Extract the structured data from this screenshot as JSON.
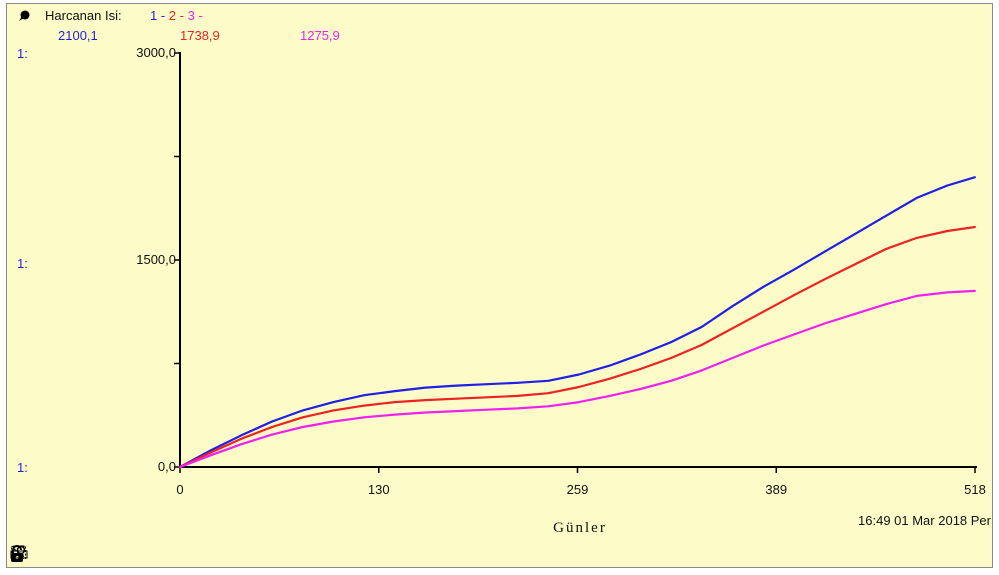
{
  "chart_data": {
    "type": "line",
    "title": "Harcanan Isı",
    "x_tick_labels": [
      "0",
      "130",
      "259",
      "389",
      "518"
    ],
    "y_tick_labels": [
      "0,0",
      "1500,0",
      "3000,0"
    ],
    "xlim": [
      0,
      518
    ],
    "ylim": [
      0,
      3000
    ],
    "xlabel": "Günler",
    "ylabel": "",
    "grid": false,
    "series": [
      {
        "name": "1",
        "color": "#1f1fe6",
        "final_value_label": "2100,1",
        "x": [
          0,
          20,
          40,
          60,
          80,
          100,
          120,
          140,
          160,
          180,
          200,
          220,
          240,
          260,
          280,
          300,
          320,
          340,
          360,
          380,
          400,
          420,
          440,
          460,
          480,
          500,
          518
        ],
        "y": [
          0,
          120,
          230,
          330,
          410,
          470,
          520,
          550,
          575,
          590,
          600,
          610,
          625,
          670,
          735,
          815,
          905,
          1015,
          1165,
          1305,
          1430,
          1560,
          1690,
          1820,
          1950,
          2040,
          2100
        ]
      },
      {
        "name": "2",
        "color": "#ee2222",
        "final_value_label": "1738,9",
        "x": [
          0,
          20,
          40,
          60,
          80,
          100,
          120,
          140,
          160,
          180,
          200,
          220,
          240,
          260,
          280,
          300,
          320,
          340,
          360,
          380,
          400,
          420,
          440,
          460,
          480,
          500,
          518
        ],
        "y": [
          0,
          105,
          205,
          290,
          360,
          410,
          445,
          470,
          485,
          495,
          505,
          515,
          535,
          580,
          640,
          710,
          790,
          885,
          1005,
          1125,
          1245,
          1360,
          1470,
          1580,
          1660,
          1710,
          1739
        ]
      },
      {
        "name": "3",
        "color": "#ee22ee",
        "final_value_label": "1275,9",
        "x": [
          0,
          20,
          40,
          60,
          80,
          100,
          120,
          140,
          160,
          180,
          200,
          220,
          240,
          260,
          280,
          300,
          320,
          340,
          360,
          380,
          400,
          420,
          440,
          460,
          480,
          500,
          518
        ],
        "y": [
          0,
          85,
          165,
          235,
          290,
          330,
          360,
          380,
          395,
          405,
          415,
          425,
          440,
          470,
          515,
          565,
          625,
          700,
          790,
          880,
          960,
          1040,
          1110,
          1180,
          1240,
          1265,
          1276
        ]
      }
    ]
  },
  "header": {
    "title": "Harcanan Isi:",
    "pens": [
      {
        "label": "1",
        "color": "#1f1fe6"
      },
      {
        "label": "2",
        "color": "#ee2222"
      },
      {
        "label": "3",
        "color": "#ee22ee"
      }
    ],
    "sep": "-"
  },
  "scale_label": "1:",
  "x_axis_label": "Günler",
  "timestamp": "16:49    01 Mar 2018 Per"
}
